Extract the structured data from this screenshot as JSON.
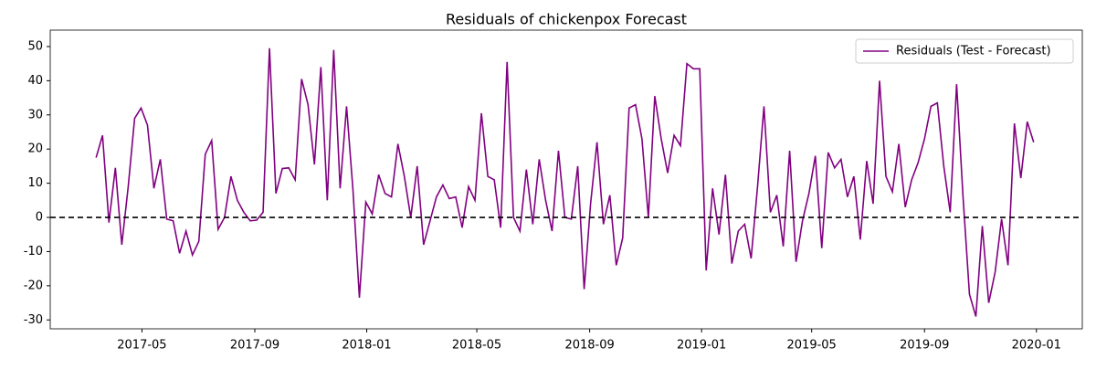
{
  "chart_data": {
    "type": "line",
    "title": "Residuals of chickenpox Forecast",
    "x": [
      "2017-03-12",
      "2017-03-19",
      "2017-03-26",
      "2017-04-02",
      "2017-04-09",
      "2017-04-16",
      "2017-04-23",
      "2017-04-30",
      "2017-05-07",
      "2017-05-14",
      "2017-05-21",
      "2017-05-28",
      "2017-06-04",
      "2017-06-11",
      "2017-06-18",
      "2017-06-25",
      "2017-07-02",
      "2017-07-09",
      "2017-07-16",
      "2017-07-23",
      "2017-07-30",
      "2017-08-06",
      "2017-08-13",
      "2017-08-20",
      "2017-08-27",
      "2017-09-03",
      "2017-09-10",
      "2017-09-17",
      "2017-09-24",
      "2017-10-01",
      "2017-10-08",
      "2017-10-15",
      "2017-10-22",
      "2017-10-29",
      "2017-11-05",
      "2017-11-12",
      "2017-11-19",
      "2017-11-26",
      "2017-12-03",
      "2017-12-10",
      "2017-12-17",
      "2017-12-24",
      "2017-12-31",
      "2018-01-07",
      "2018-01-14",
      "2018-01-21",
      "2018-01-28",
      "2018-02-04",
      "2018-02-11",
      "2018-02-18",
      "2018-02-25",
      "2018-03-04",
      "2018-03-11",
      "2018-03-18",
      "2018-03-25",
      "2018-04-01",
      "2018-04-08",
      "2018-04-15",
      "2018-04-22",
      "2018-04-29",
      "2018-05-06",
      "2018-05-13",
      "2018-05-20",
      "2018-05-27",
      "2018-06-03",
      "2018-06-10",
      "2018-06-17",
      "2018-06-24",
      "2018-07-01",
      "2018-07-08",
      "2018-07-15",
      "2018-07-22",
      "2018-07-29",
      "2018-08-05",
      "2018-08-12",
      "2018-08-19",
      "2018-08-26",
      "2018-09-02",
      "2018-09-09",
      "2018-09-16",
      "2018-09-23",
      "2018-09-30",
      "2018-10-07",
      "2018-10-14",
      "2018-10-21",
      "2018-10-28",
      "2018-11-04",
      "2018-11-11",
      "2018-11-18",
      "2018-11-25",
      "2018-12-02",
      "2018-12-09",
      "2018-12-16",
      "2018-12-23",
      "2018-12-30",
      "2019-01-06",
      "2019-01-13",
      "2019-01-20",
      "2019-01-27",
      "2019-02-03",
      "2019-02-10",
      "2019-02-17",
      "2019-02-24",
      "2019-03-03",
      "2019-03-10",
      "2019-03-17",
      "2019-03-24",
      "2019-03-31",
      "2019-04-07",
      "2019-04-14",
      "2019-04-21",
      "2019-04-28",
      "2019-05-05",
      "2019-05-12",
      "2019-05-19",
      "2019-05-26",
      "2019-06-02",
      "2019-06-09",
      "2019-06-16",
      "2019-06-23",
      "2019-06-30",
      "2019-07-07",
      "2019-07-14",
      "2019-07-21",
      "2019-07-28",
      "2019-08-04",
      "2019-08-11",
      "2019-08-18",
      "2019-08-25",
      "2019-09-01",
      "2019-09-08",
      "2019-09-15",
      "2019-09-22",
      "2019-09-29",
      "2019-10-06",
      "2019-10-13",
      "2019-10-20",
      "2019-10-27",
      "2019-11-03",
      "2019-11-10",
      "2019-11-17",
      "2019-11-24",
      "2019-12-01",
      "2019-12-08",
      "2019-12-15",
      "2019-12-22",
      "2019-12-29"
    ],
    "series": [
      {
        "name": "Residuals (Test - Forecast)",
        "color": "#800080",
        "values": [
          17.5,
          24,
          -1.5,
          14.5,
          -8,
          9,
          29,
          32,
          27,
          8.5,
          17,
          -0.5,
          -1,
          -10.5,
          -4,
          -11,
          -7,
          18.5,
          22.5,
          -3.5,
          0,
          12,
          5,
          1.5,
          -1,
          -0.8,
          1.5,
          49.5,
          7,
          14.3,
          14.5,
          11,
          40.5,
          33,
          15.5,
          44,
          5,
          49,
          8.5,
          32.5,
          8,
          -23.5,
          4.5,
          1,
          12.5,
          7,
          6,
          21.5,
          12,
          0,
          15,
          -8,
          -1,
          6,
          9.5,
          5.5,
          6,
          -3,
          9,
          5,
          30.5,
          12,
          11,
          -3,
          45.5,
          0,
          -4,
          14,
          -2,
          17,
          5,
          -4,
          19.5,
          0,
          -0.5,
          15,
          -21,
          4,
          22,
          -2,
          6.5,
          -14,
          -6,
          32,
          33,
          23,
          0,
          35.5,
          23,
          13,
          24,
          21,
          45,
          43.5,
          43.5,
          -15.5,
          8.5,
          -5,
          12.5,
          -13.5,
          -4,
          -2,
          -12,
          9,
          32.5,
          1.5,
          6.5,
          -8.5,
          19.5,
          -13,
          -1,
          7,
          18,
          -9,
          19,
          14.5,
          17,
          6,
          12,
          -6.5,
          16.5,
          4,
          40,
          12,
          7.5,
          21.5,
          3,
          11,
          16,
          23,
          32.5,
          33.5,
          15,
          1.5,
          39,
          6,
          -22.5,
          -29,
          -2.5,
          -25,
          -16,
          -0.5,
          -14,
          27.5,
          11.5,
          28,
          22
        ]
      }
    ],
    "xlim": [
      "2017-01-21",
      "2020-02-20"
    ],
    "xticks": [
      "2017-05",
      "2017-09",
      "2018-01",
      "2018-05",
      "2018-09",
      "2019-01",
      "2019-05",
      "2019-09",
      "2020-01"
    ],
    "ylim": [
      -32.6,
      54.8
    ],
    "yticks": [
      -30,
      -20,
      -10,
      0,
      10,
      20,
      30,
      40,
      50
    ],
    "hline": 0,
    "legend": "upper right"
  }
}
